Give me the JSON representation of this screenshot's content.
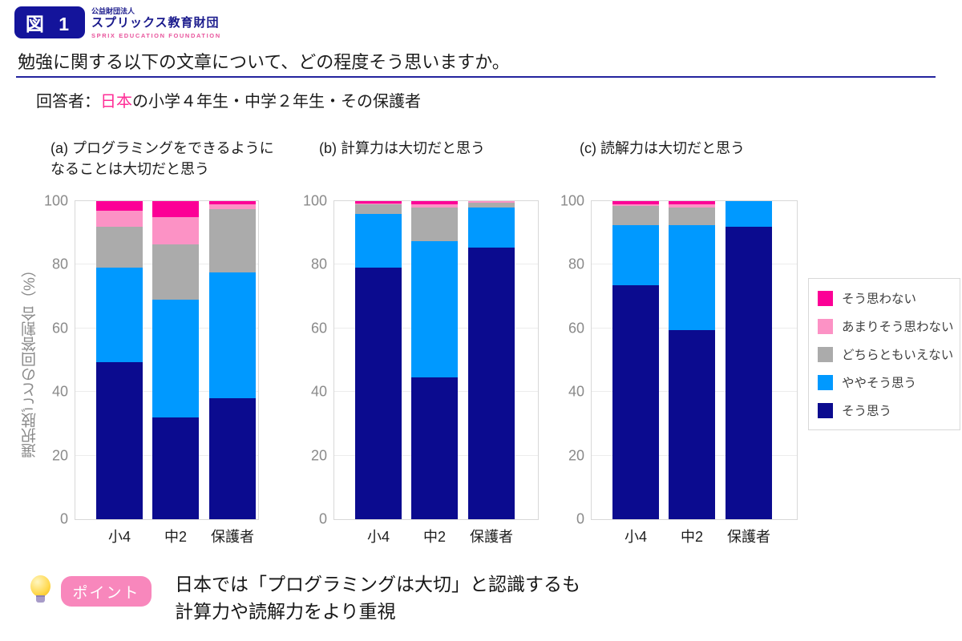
{
  "header": {
    "figure_badge": "図 1",
    "org_small": "公益財団法人",
    "org_name": "スプリックス教育財団",
    "org_en": "SPRIX EDUCATION FOUNDATION",
    "title": "勉強に関する以下の文章について、どの程度そう思いますか。",
    "respondent_prefix": "回答者：",
    "respondent_highlight": "日本",
    "respondent_rest": "の小学４年生・中学２年生・その保護者"
  },
  "footer": {
    "point_badge": "ポイント",
    "line1": "日本では「プログラミングは大切」と認識するも",
    "line2": "計算力や読解力をより重視"
  },
  "colors": {
    "badge_navy": "#14149B",
    "brand_navy": "#1A1A8C",
    "brand_pink": "#E8549C",
    "rule_navy": "#23239E",
    "highlight_magenta": "#FF2D96",
    "point_badge_pink": "#F887BC"
  },
  "chart_data": {
    "type": "bar",
    "stacked": true,
    "grid": "light horizontal lines at 20/40/60/80",
    "legend_position": "right",
    "categories": [
      "小4",
      "中2",
      "保護者"
    ],
    "ylabel": "選択肢ごとの回答割合（%）",
    "ylim": [
      0,
      100
    ],
    "yticks": [
      0,
      20,
      40,
      60,
      80,
      100
    ],
    "legend": [
      {
        "label": "そう思わない",
        "color": "#FC0096"
      },
      {
        "label": "あまりそう思わない",
        "color": "#FC92C5"
      },
      {
        "label": "どちらともいえない",
        "color": "#ABABAB"
      },
      {
        "label": "ややそう思う",
        "color": "#0099FF"
      },
      {
        "label": "そう思う",
        "color": "#0B0B8F"
      }
    ],
    "charts": [
      {
        "key": "a",
        "title_lines": [
          "(a) プログラミングをできるように",
          "なることは大切だと思う"
        ],
        "series": [
          {
            "name": "そう思う",
            "values": [
              49.5,
              32,
              38
            ]
          },
          {
            "name": "ややそう思う",
            "values": [
              29.5,
              37,
              39.5
            ]
          },
          {
            "name": "どちらともいえない",
            "values": [
              13,
              17.5,
              20
            ]
          },
          {
            "name": "あまりそう思わない",
            "values": [
              5,
              8.5,
              1.5
            ]
          },
          {
            "name": "そう思わない",
            "values": [
              3,
              5,
              1
            ]
          }
        ]
      },
      {
        "key": "b",
        "title_lines": [
          "(b) 計算力は大切だと思う"
        ],
        "series": [
          {
            "name": "そう思う",
            "values": [
              79,
              44.5,
              85.5
            ]
          },
          {
            "name": "ややそう思う",
            "values": [
              17,
              43,
              12.5
            ]
          },
          {
            "name": "どちらともいえない",
            "values": [
              3,
              10.5,
              1.5
            ]
          },
          {
            "name": "あまりそう思わない",
            "values": [
              0.3,
              1,
              0.5
            ]
          },
          {
            "name": "そう思わない",
            "values": [
              0.7,
              1,
              0
            ]
          }
        ]
      },
      {
        "key": "c",
        "title_lines": [
          "(c) 読解力は大切だと思う"
        ],
        "series": [
          {
            "name": "そう思う",
            "values": [
              73.5,
              59.5,
              92
            ]
          },
          {
            "name": "ややそう思う",
            "values": [
              19,
              33,
              8
            ]
          },
          {
            "name": "どちらともいえない",
            "values": [
              6,
              5.5,
              0
            ]
          },
          {
            "name": "あまりそう思わない",
            "values": [
              0.5,
              1,
              0
            ]
          },
          {
            "name": "そう思わない",
            "values": [
              1,
              1,
              0
            ]
          }
        ]
      }
    ]
  }
}
